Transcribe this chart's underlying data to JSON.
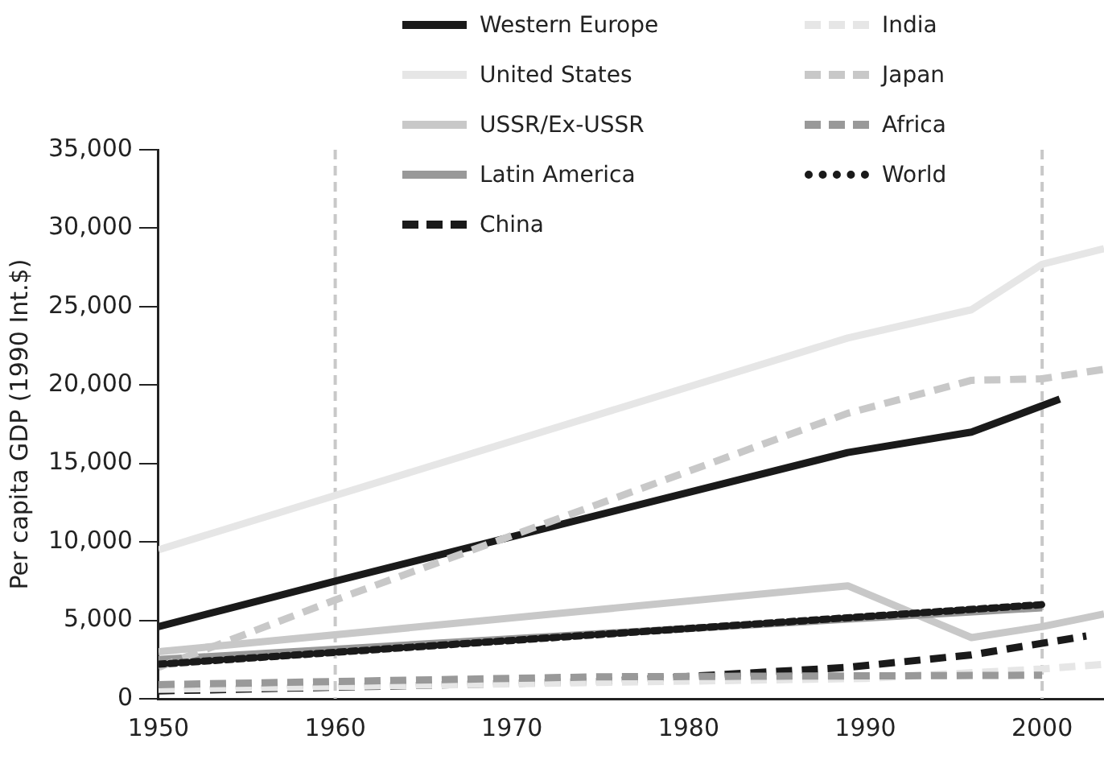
{
  "chart_data": {
    "type": "line",
    "ylabel": "Per capita GDP (1990 Int.$)",
    "xlim": [
      1950,
      2003.5
    ],
    "xticks": [
      1950,
      1960,
      1970,
      1980,
      1990,
      2000
    ],
    "ylim": [
      0,
      35000
    ],
    "yticks": [
      {
        "value": 0,
        "label": "0"
      },
      {
        "value": 5000,
        "label": "5,000"
      },
      {
        "value": 10000,
        "label": "10,000"
      },
      {
        "value": 15000,
        "label": "15,000"
      },
      {
        "value": 20000,
        "label": "20,000"
      },
      {
        "value": 25000,
        "label": "25,000"
      },
      {
        "value": 30000,
        "label": "30,000"
      },
      {
        "value": 35000,
        "label": "35,000"
      }
    ],
    "grid": false,
    "legend": "top",
    "marker": "none",
    "ref_lines": [
      {
        "axis": "x",
        "value": 1960,
        "color": "#c8c8c8",
        "line_style": "dashed"
      },
      {
        "axis": "x",
        "value": 2000,
        "color": "#c8c8c8",
        "line_style": "dashed"
      }
    ],
    "series": [
      {
        "name": "Western Europe",
        "color": "#1a1a1a",
        "line_style": "solid",
        "x": [
          1950,
          1960,
          1989,
          1996,
          2001
        ],
        "values": [
          4600,
          7500,
          15700,
          17000,
          19100
        ]
      },
      {
        "name": "United States",
        "color": "#e6e6e6",
        "line_style": "solid",
        "x": [
          1950,
          1989,
          1996,
          2000,
          2003.5
        ],
        "values": [
          9500,
          23000,
          24800,
          27700,
          28700
        ]
      },
      {
        "name": "USSR/Ex-USSR",
        "color": "#c8c8c8",
        "line_style": "solid",
        "x": [
          1950,
          1989,
          1996,
          2000,
          2003.5
        ],
        "values": [
          3000,
          7200,
          3900,
          4600,
          5400
        ]
      },
      {
        "name": "Latin America",
        "color": "#999999",
        "line_style": "solid",
        "x": [
          1950,
          2000
        ],
        "values": [
          2500,
          5800
        ]
      },
      {
        "name": "China",
        "color": "#1a1a1a",
        "line_style": "dashed",
        "x": [
          1950,
          1975,
          1989,
          1996,
          2002.5
        ],
        "values": [
          500,
          1100,
          2000,
          2800,
          4000
        ]
      },
      {
        "name": "India",
        "color": "#e6e6e6",
        "line_style": "dashed",
        "x": [
          1950,
          1990,
          2000,
          2003.5
        ],
        "values": [
          600,
          1300,
          1900,
          2200
        ]
      },
      {
        "name": "Japan",
        "color": "#c8c8c8",
        "line_style": "dashed",
        "x": [
          1950,
          1960,
          1989,
          1996,
          2000,
          2003.5
        ],
        "values": [
          2000,
          6300,
          18200,
          20300,
          20400,
          21000
        ]
      },
      {
        "name": "Africa",
        "color": "#999999",
        "line_style": "dashed",
        "x": [
          1950,
          1975,
          2000
        ],
        "values": [
          900,
          1400,
          1500
        ]
      },
      {
        "name": "World",
        "color": "#1a1a1a",
        "line_style": "dotted",
        "x": [
          1950,
          2000
        ],
        "values": [
          2200,
          6000
        ]
      }
    ]
  }
}
